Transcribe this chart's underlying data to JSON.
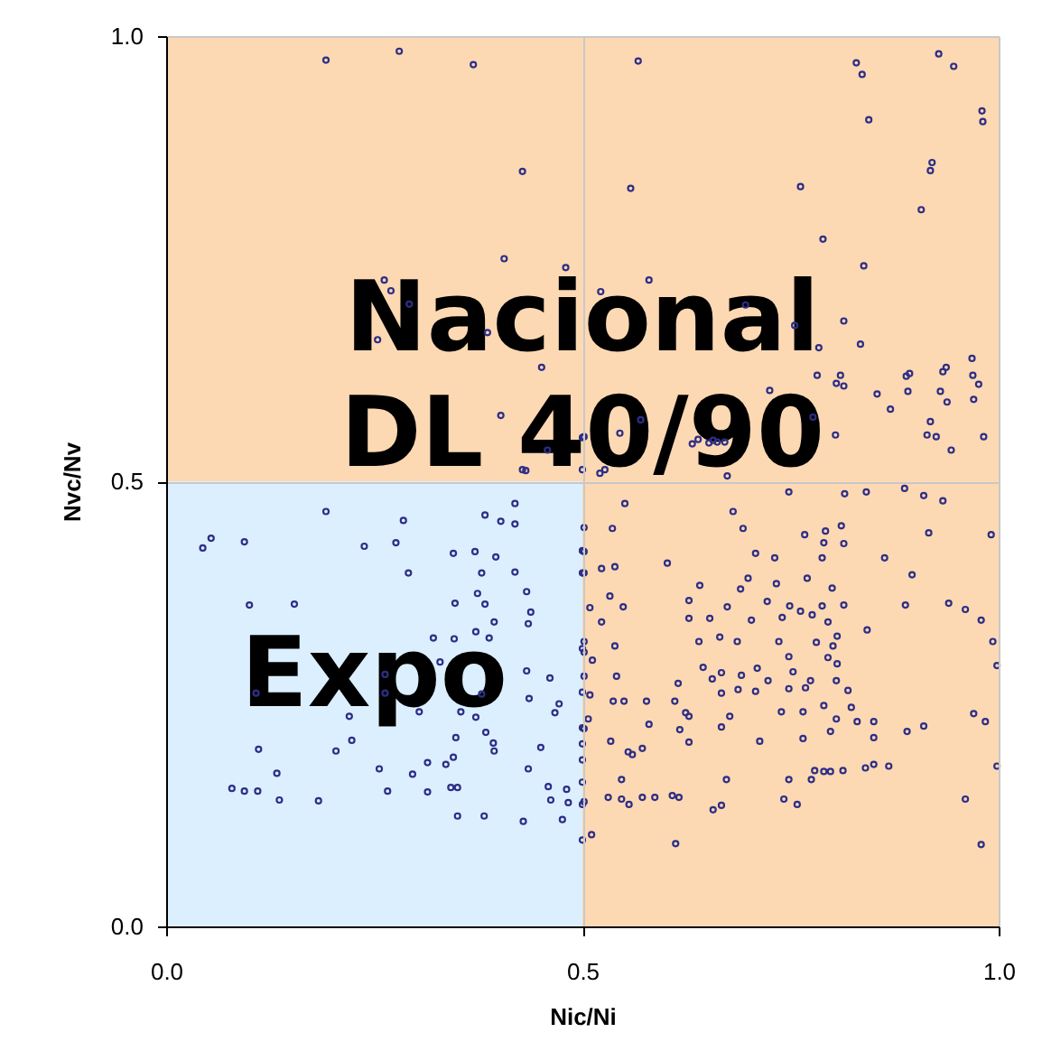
{
  "chart_data": {
    "type": "scatter",
    "xlabel": "Nic/Ni",
    "ylabel": "Nvc/Nv",
    "xlim": [
      0,
      1
    ],
    "ylim": [
      0,
      1
    ],
    "xticks": [
      {
        "value": 0,
        "label": "0.0"
      },
      {
        "value": 0.5,
        "label": "0.5"
      },
      {
        "value": 1,
        "label": "1.0"
      }
    ],
    "yticks": [
      {
        "value": 0,
        "label": "0.0"
      },
      {
        "value": 0.5,
        "label": "0.5"
      },
      {
        "value": 1,
        "label": "1.0"
      }
    ],
    "grid": true,
    "marker": "circle",
    "bands": [
      {
        "axis": "x",
        "from": 0,
        "to": 0.5,
        "label": "Expo",
        "color": "#dcefff"
      },
      {
        "axis": "y",
        "from": 0.5,
        "to": 1,
        "label": "Nacional\nDL 40/90",
        "color": "#fdd9b3"
      },
      {
        "axis": "x",
        "from": 0.5,
        "to": 1,
        "color": "#fdd9b3"
      }
    ],
    "series": [
      {
        "color": "#2e2e86",
        "x": [
          0.192,
          0.28,
          0.369,
          0.428,
          0.406,
          0.48,
          0.262,
          0.27,
          0.292,
          0.254,
          0.386,
          0.451,
          0.402,
          0.458,
          0.428,
          0.432,
          0.5,
          0.5,
          0.567,
          0.829,
          0.836,
          0.928,
          0.946,
          0.98,
          0.981,
          0.844,
          0.918,
          0.92,
          0.907,
          0.558,
          0.762,
          0.789,
          0.838,
          0.58,
          0.522,
          0.696,
          0.814,
          0.755,
          0.834,
          0.784,
          0.782,
          0.805,
          0.81,
          0.725,
          0.814,
          0.854,
          0.87,
          0.889,
          0.893,
          0.891,
          0.933,
          0.937,
          0.968,
          0.969,
          0.976,
          0.938,
          0.93,
          0.97,
          0.57,
          0.777,
          0.545,
          0.632,
          0.639,
          0.652,
          0.657,
          0.662,
          0.671,
          0.804,
          0.918,
          0.914,
          0.925,
          0.982,
          0.943,
          0.502,
          0.521,
          0.527,
          0.674,
          0.192,
          0.285,
          0.054,
          0.044,
          0.094,
          0.238,
          0.276,
          0.345,
          0.371,
          0.383,
          0.419,
          0.402,
          0.419,
          0.396,
          0.291,
          0.379,
          0.419,
          0.1,
          0.154,
          0.347,
          0.383,
          0.374,
          0.433,
          0.438,
          0.435,
          0.394,
          0.372,
          0.321,
          0.346,
          0.388,
          0.263,
          0.329,
          0.433,
          0.461,
          0.108,
          0.263,
          0.379,
          0.436,
          0.472,
          0.304,
          0.354,
          0.22,
          0.372,
          0.467,
          0.223,
          0.204,
          0.111,
          0.348,
          0.384,
          0.393,
          0.45,
          0.394,
          0.345,
          0.314,
          0.256,
          0.296,
          0.336,
          0.435,
          0.133,
          0.079,
          0.094,
          0.11,
          0.136,
          0.183,
          0.266,
          0.314,
          0.342,
          0.35,
          0.459,
          0.481,
          0.462,
          0.483,
          0.35,
          0.382,
          0.429,
          0.476,
          0.5,
          0.5,
          0.5,
          0.5,
          0.5,
          0.5,
          0.5,
          0.5,
          0.5,
          0.5,
          0.551,
          0.748,
          0.815,
          0.841,
          0.887,
          0.91,
          0.933,
          0.681,
          0.536,
          0.693,
          0.767,
          0.792,
          0.811,
          0.79,
          0.814,
          0.916,
          0.991,
          0.708,
          0.731,
          0.788,
          0.863,
          0.602,
          0.539,
          0.523,
          0.896,
          0.699,
          0.77,
          0.8,
          0.641,
          0.69,
          0.733,
          0.533,
          0.628,
          0.722,
          0.749,
          0.788,
          0.814,
          0.888,
          0.94,
          0.96,
          0.549,
          0.509,
          0.674,
          0.762,
          0.628,
          0.653,
          0.703,
          0.74,
          0.776,
          0.795,
          0.523,
          0.979,
          0.842,
          0.806,
          0.781,
          0.801,
          0.64,
          0.665,
          0.686,
          0.736,
          0.539,
          0.993,
          0.512,
          0.748,
          0.795,
          0.806,
          0.645,
          0.71,
          0.753,
          0.667,
          0.998,
          0.541,
          0.615,
          0.656,
          0.691,
          0.723,
          0.774,
          0.805,
          0.667,
          0.687,
          0.708,
          0.748,
          0.768,
          0.819,
          0.509,
          0.537,
          0.55,
          0.577,
          0.611,
          0.739,
          0.765,
          0.79,
          0.823,
          0.677,
          0.624,
          0.628,
          0.97,
          0.507,
          0.805,
          0.83,
          0.85,
          0.91,
          0.984,
          0.58,
          0.667,
          0.617,
          0.798,
          0.89,
          0.765,
          0.85,
          0.534,
          0.628,
          0.713,
          0.572,
          0.555,
          0.56,
          0.85,
          0.868,
          0.84,
          0.998,
          0.779,
          0.79,
          0.798,
          0.813,
          0.547,
          0.673,
          0.748,
          0.775,
          0.531,
          0.547,
          0.556,
          0.572,
          0.587,
          0.608,
          0.616,
          0.742,
          0.758,
          0.667,
          0.657,
          0.96,
          0.511,
          0.612,
          0.979,
          0.502,
          0.502,
          0.502,
          0.502,
          0.502,
          0.502,
          0.502,
          0.502
        ],
        "values": [
          0.973,
          0.983,
          0.968,
          0.848,
          0.75,
          0.74,
          0.726,
          0.714,
          0.699,
          0.659,
          0.667,
          0.628,
          0.574,
          0.535,
          0.513,
          0.512,
          0.549,
          0.513,
          0.972,
          0.97,
          0.957,
          0.98,
          0.966,
          0.916,
          0.904,
          0.906,
          0.849,
          0.858,
          0.805,
          0.829,
          0.831,
          0.772,
          0.742,
          0.726,
          0.713,
          0.698,
          0.68,
          0.675,
          0.654,
          0.65,
          0.619,
          0.61,
          0.619,
          0.602,
          0.607,
          0.598,
          0.581,
          0.618,
          0.621,
          0.601,
          0.623,
          0.628,
          0.638,
          0.619,
          0.609,
          0.589,
          0.601,
          0.592,
          0.569,
          0.572,
          0.554,
          0.542,
          0.547,
          0.543,
          0.546,
          0.544,
          0.544,
          0.552,
          0.567,
          0.552,
          0.55,
          0.55,
          0.535,
          0.55,
          0.509,
          0.513,
          0.506,
          0.466,
          0.456,
          0.436,
          0.425,
          0.432,
          0.427,
          0.431,
          0.419,
          0.421,
          0.462,
          0.475,
          0.455,
          0.452,
          0.415,
          0.397,
          0.397,
          0.398,
          0.361,
          0.362,
          0.363,
          0.362,
          0.374,
          0.376,
          0.353,
          0.34,
          0.342,
          0.331,
          0.324,
          0.323,
          0.324,
          0.283,
          0.297,
          0.287,
          0.279,
          0.262,
          0.262,
          0.261,
          0.256,
          0.25,
          0.241,
          0.241,
          0.236,
          0.235,
          0.24,
          0.209,
          0.197,
          0.199,
          0.212,
          0.218,
          0.206,
          0.201,
          0.197,
          0.19,
          0.184,
          0.177,
          0.171,
          0.182,
          0.177,
          0.172,
          0.155,
          0.152,
          0.152,
          0.142,
          0.141,
          0.152,
          0.151,
          0.156,
          0.156,
          0.157,
          0.154,
          0.142,
          0.139,
          0.124,
          0.124,
          0.118,
          0.12,
          0.422,
          0.397,
          0.312,
          0.263,
          0.223,
          0.205,
          0.187,
          0.162,
          0.137,
          0.097,
          0.475,
          0.488,
          0.486,
          0.488,
          0.492,
          0.484,
          0.478,
          0.466,
          0.447,
          0.447,
          0.44,
          0.444,
          0.45,
          0.431,
          0.43,
          0.442,
          0.44,
          0.419,
          0.414,
          0.414,
          0.414,
          0.408,
          0.404,
          0.402,
          0.395,
          0.391,
          0.391,
          0.38,
          0.383,
          0.379,
          0.385,
          0.371,
          0.366,
          0.365,
          0.36,
          0.36,
          0.361,
          0.361,
          0.363,
          0.356,
          0.359,
          0.358,
          0.359,
          0.354,
          0.346,
          0.346,
          0.344,
          0.347,
          0.35,
          0.342,
          0.342,
          0.344,
          0.333,
          0.326,
          0.319,
          0.315,
          0.32,
          0.325,
          0.32,
          0.32,
          0.315,
          0.32,
          0.299,
          0.303,
          0.302,
          0.295,
          0.291,
          0.29,
          0.286,
          0.285,
          0.293,
          0.281,
          0.273,
          0.278,
          0.282,
          0.276,
          0.276,
          0.276,
          0.262,
          0.266,
          0.264,
          0.267,
          0.268,
          0.265,
          0.26,
          0.253,
          0.253,
          0.253,
          0.253,
          0.241,
          0.241,
          0.248,
          0.246,
          0.236,
          0.24,
          0.236,
          0.239,
          0.233,
          0.233,
          0.23,
          0.23,
          0.225,
          0.23,
          0.227,
          0.224,
          0.221,
          0.219,
          0.219,
          0.211,
          0.212,
          0.208,
          0.207,
          0.208,
          0.2,
          0.196,
          0.193,
          0.182,
          0.18,
          0.178,
          0.18,
          0.175,
          0.174,
          0.174,
          0.175,
          0.165,
          0.165,
          0.165,
          0.165,
          0.145,
          0.143,
          0.137,
          0.145,
          0.145,
          0.147,
          0.145,
          0.143,
          0.137,
          0.136,
          0.131,
          0.143,
          0.103,
          0.093,
          0.092,
          0.448,
          0.421,
          0.397,
          0.32,
          0.308,
          0.281,
          0.222,
          0.14
        ]
      }
    ]
  }
}
